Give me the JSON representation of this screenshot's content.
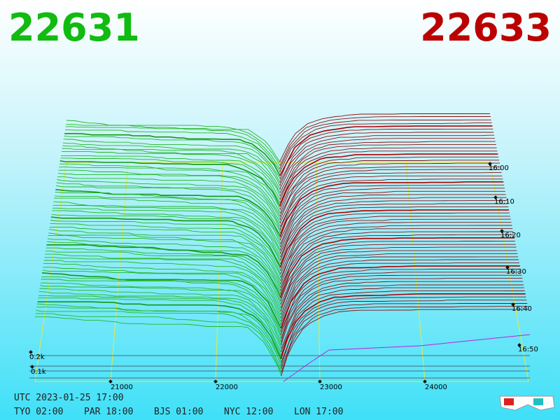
{
  "header": {
    "bid": "22631",
    "ask": "22633"
  },
  "price_axis": {
    "labels": [
      "21000",
      "22000",
      "23000",
      "24000"
    ]
  },
  "depth_axis": {
    "labels": [
      "0.2k",
      "0.1k"
    ]
  },
  "time_axis": {
    "labels": [
      "16:00",
      "16:10",
      "16:20",
      "16:30",
      "16:40",
      "16:50"
    ]
  },
  "footer": {
    "utc": "UTC 2023-01-25 17:00",
    "zones": [
      "TYO 02:00",
      "PAR 18:00",
      "BJS 01:00",
      "NYC 12:00",
      "LON 17:00"
    ]
  }
}
